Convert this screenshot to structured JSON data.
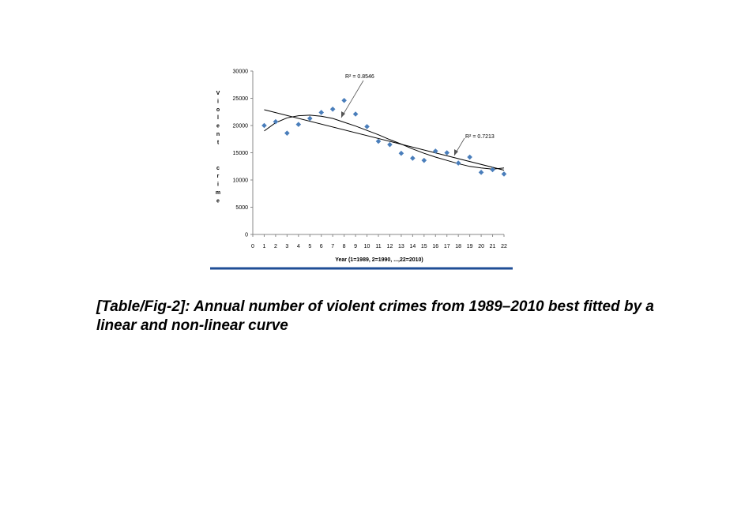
{
  "caption": "[Table/Fig-2]: Annual number of violent crimes from 1989–2010 best fitted by a linear and non-linear curve",
  "chart_data": {
    "type": "scatter",
    "title": "",
    "xlabel": "Year (1=1989, 2=1990, ...,22=2010)",
    "ylabel": "Violent crime",
    "xlim": [
      0,
      22
    ],
    "ylim": [
      0,
      30000
    ],
    "x_ticks": [
      0,
      1,
      2,
      3,
      4,
      5,
      6,
      7,
      8,
      9,
      10,
      11,
      12,
      13,
      14,
      15,
      16,
      17,
      18,
      19,
      20,
      21,
      22
    ],
    "y_ticks": [
      0,
      5000,
      10000,
      15000,
      20000,
      25000,
      30000
    ],
    "grid": false,
    "marker_color": "#4a7ebb",
    "series": [
      {
        "x": [
          1,
          2,
          3,
          4,
          5,
          6,
          7,
          8,
          9,
          10,
          11,
          12,
          13,
          14,
          15,
          16,
          17,
          18,
          19,
          20,
          21,
          22
        ],
        "y": [
          20000,
          20700,
          18600,
          20200,
          21300,
          22400,
          23000,
          24600,
          22100,
          19800,
          17100,
          16500,
          14900,
          14000,
          13600,
          15300,
          15000,
          13100,
          14200,
          11400,
          11900,
          11100
        ]
      }
    ],
    "fits": [
      {
        "type": "linear",
        "x_range": [
          1,
          22
        ],
        "y_range": [
          22900,
          11800
        ],
        "r2_label": "R² = 0.7213"
      },
      {
        "type": "non-linear",
        "x_range": [
          1,
          22
        ],
        "y": [
          19000,
          20500,
          21400,
          21800,
          21900,
          21700,
          21300,
          20600,
          19900,
          19100,
          18300,
          17400,
          16600,
          15700,
          14900,
          14200,
          13600,
          13000,
          12500,
          12200,
          12000,
          12200
        ],
        "r2_label": "R² = 0.8546"
      }
    ],
    "bottom_rule_color": "#1f4e96"
  }
}
